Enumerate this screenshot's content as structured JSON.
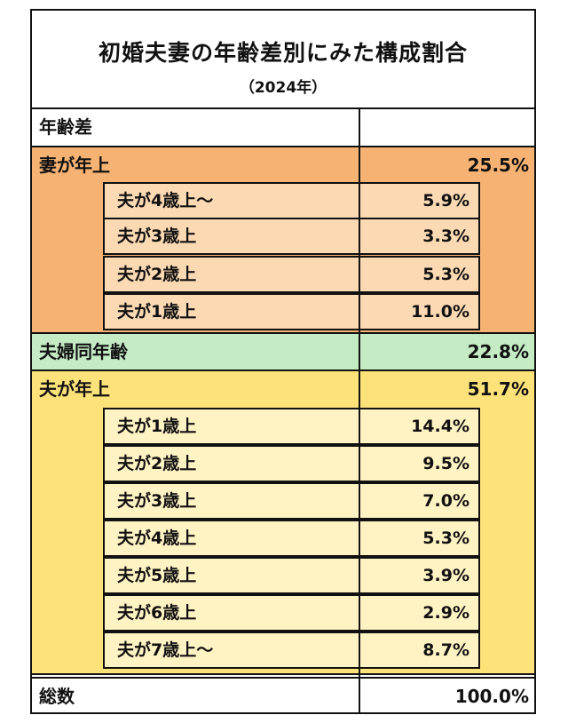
{
  "title": "初婚夫妻の年齢差別にみた構成割合",
  "subtitle": "（2024年）",
  "header_label": "年齢差",
  "colors": {
    "wife_older_bg": "#f5b273",
    "wife_older_sub_bg": "#fbd9b3",
    "same_age_bg": "#c4ebc4",
    "husband_older_bg": "#fde27a",
    "husband_older_sub_bg": "#fff3c4"
  },
  "wife_older": {
    "label": "妻が年上",
    "value": "25.5%",
    "items": [
      {
        "label": "夫が4歳上〜",
        "value": "5.9%"
      },
      {
        "label": "夫が3歳上",
        "value": "3.3%"
      },
      {
        "label": "夫が2歳上",
        "value": "5.3%"
      },
      {
        "label": "夫が1歳上",
        "value": "11.0%"
      }
    ]
  },
  "same_age": {
    "label": "夫婦同年齢",
    "value": "22.8%"
  },
  "husband_older": {
    "label": "夫が年上",
    "value": "51.7%",
    "items": [
      {
        "label": "夫が1歳上",
        "value": "14.4%"
      },
      {
        "label": "夫が2歳上",
        "value": "9.5%"
      },
      {
        "label": "夫が3歳上",
        "value": "7.0%"
      },
      {
        "label": "夫が4歳上",
        "value": "5.3%"
      },
      {
        "label": "夫が5歳上",
        "value": "3.9%"
      },
      {
        "label": "夫が6歳上",
        "value": "2.9%"
      },
      {
        "label": "夫が7歳上〜",
        "value": "8.7%"
      }
    ]
  },
  "total": {
    "label": "総数",
    "value": "100.0%"
  }
}
